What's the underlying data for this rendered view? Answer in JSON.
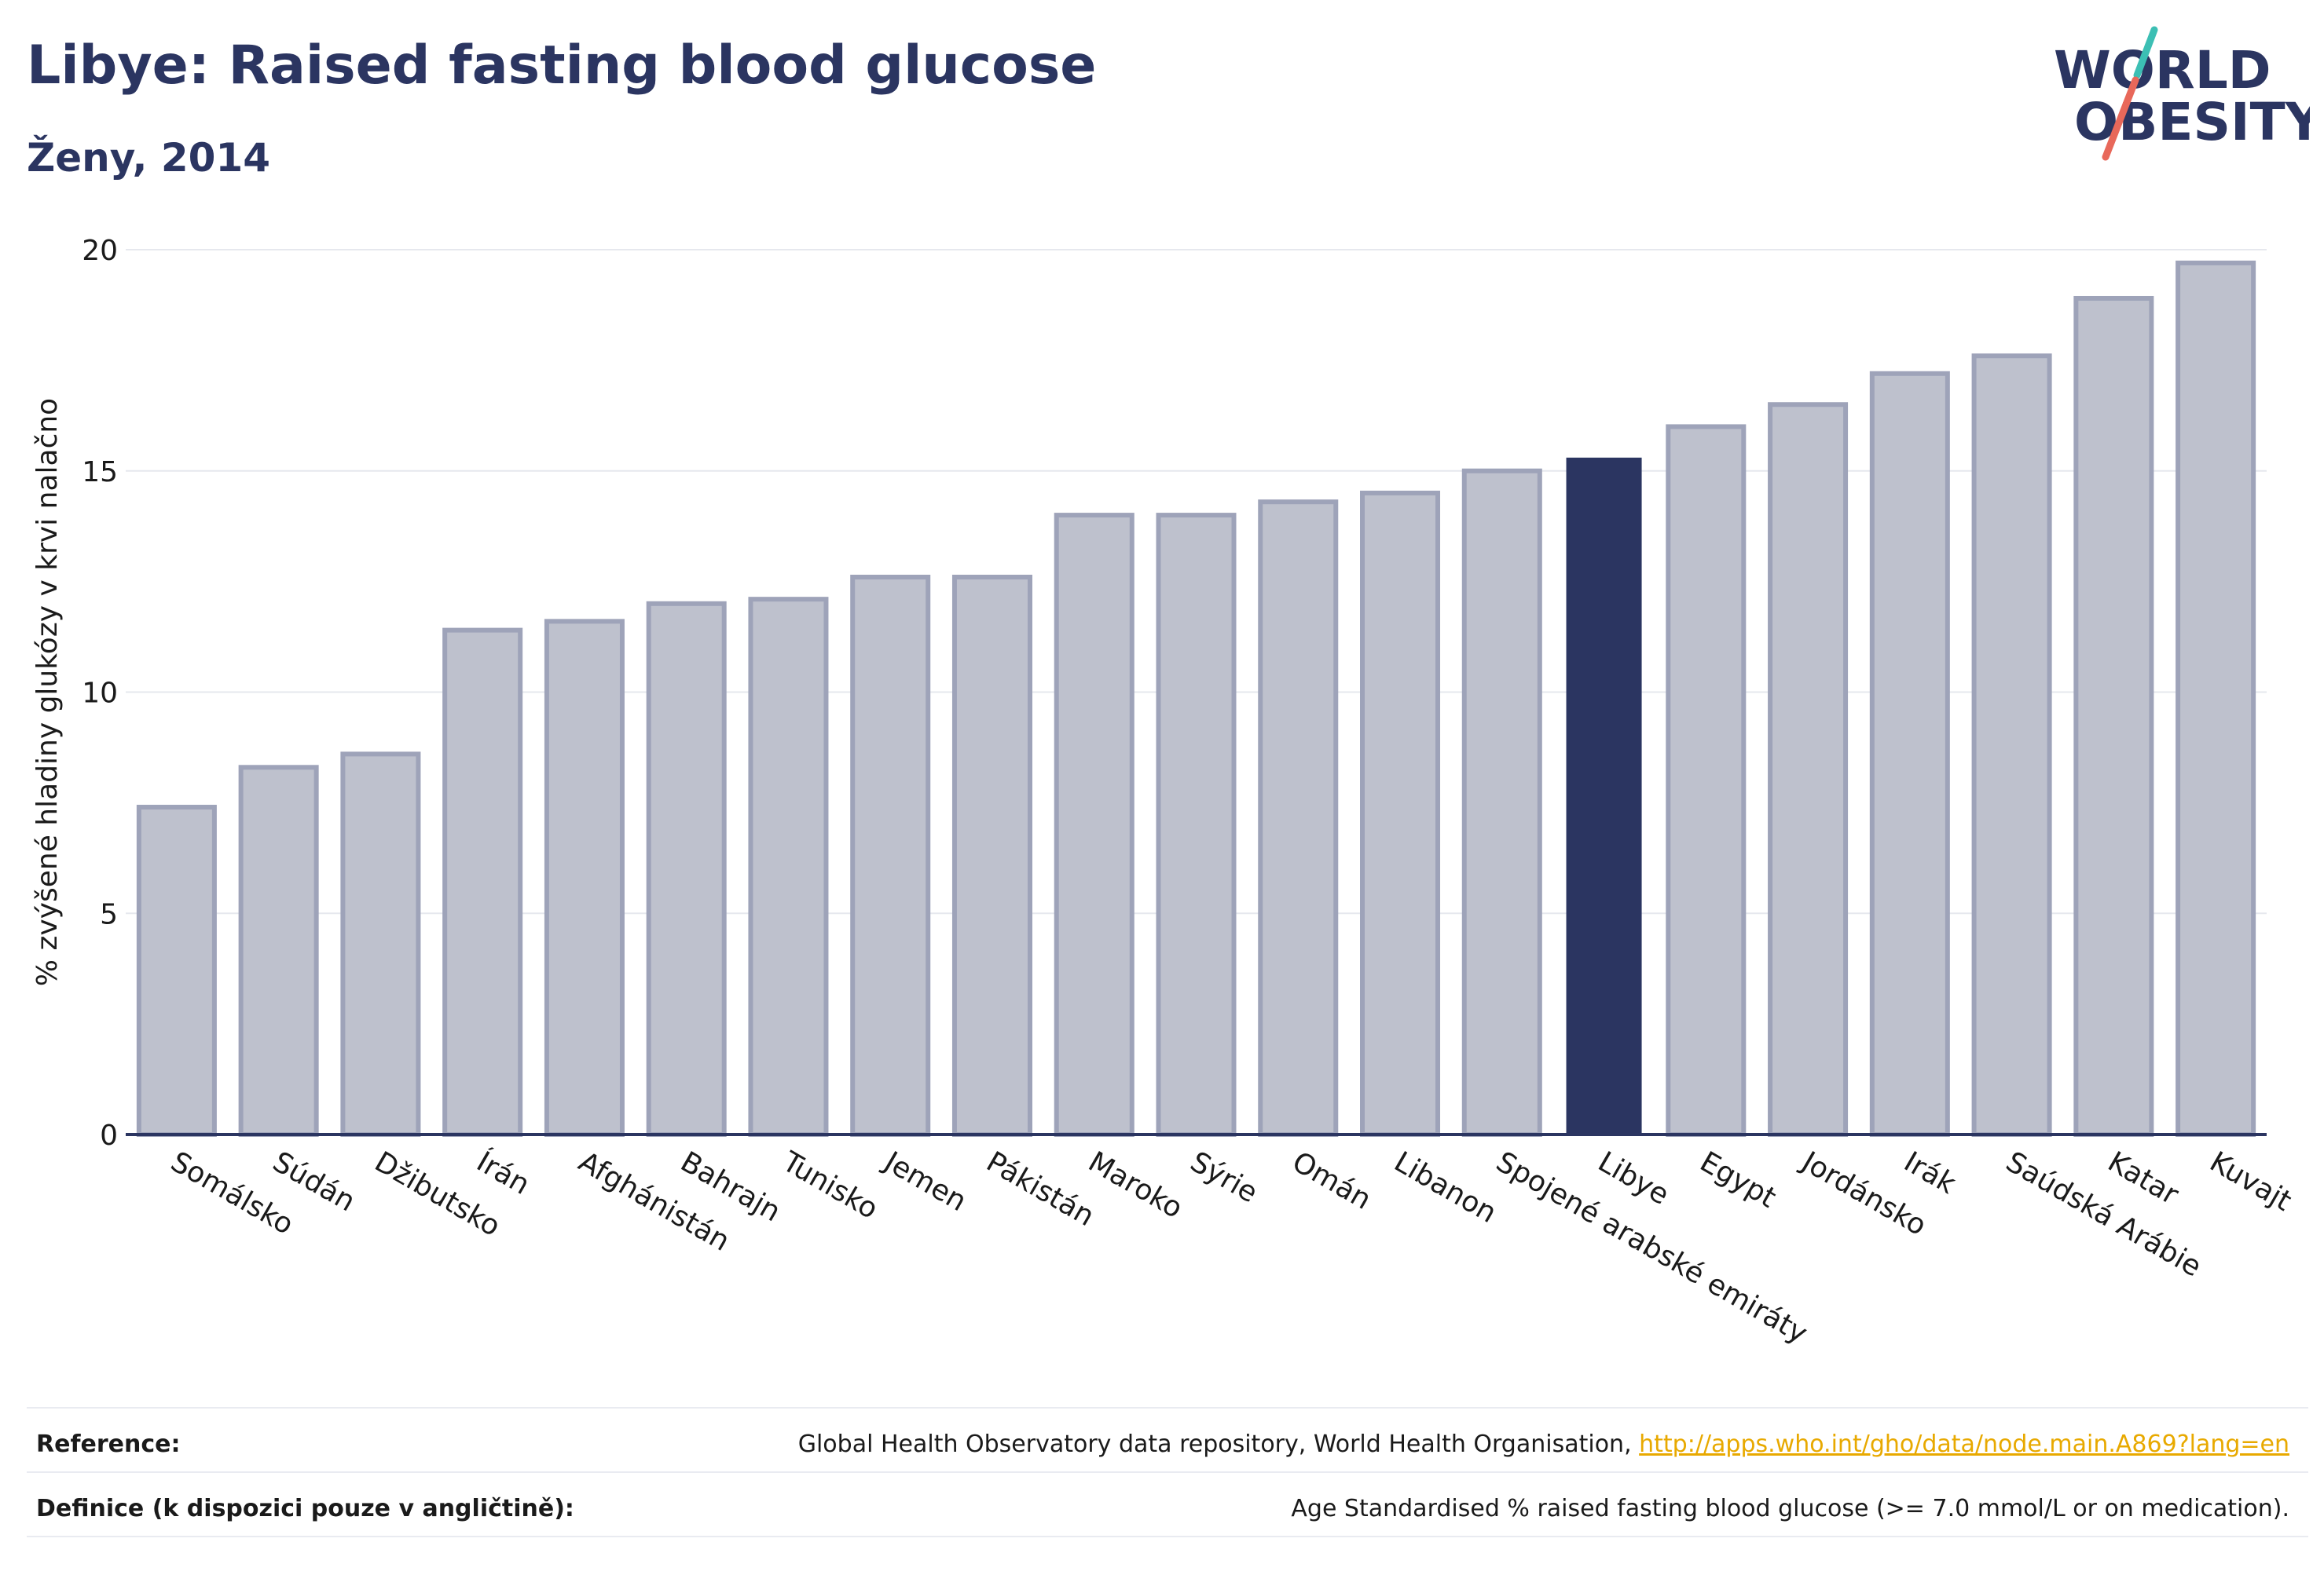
{
  "header": {
    "title": "Libye: Raised fasting blood glucose",
    "subtitle": "Ženy, 2014"
  },
  "logo": {
    "line1": "WORLD",
    "line2": "OBESITY",
    "text_color": "#2b3561",
    "slash_top_color": "#3cbfb4",
    "slash_bottom_color": "#e8685a"
  },
  "chart_data": {
    "type": "bar",
    "ylabel": "% zvýšené hladiny glukózy v krvi nalačno",
    "xlabel": "",
    "ylim": [
      0,
      20
    ],
    "yticks": [
      0,
      5,
      10,
      15,
      20
    ],
    "grid": true,
    "highlight_category": "Libye",
    "colors": {
      "bar": "#bec1cd",
      "bar_border": "#9ea3b9",
      "highlight": "#2b3561",
      "grid": "#e6e8ee",
      "axis": "#2b3561"
    },
    "categories": [
      "Somálsko",
      "Súdán",
      "Džibutsko",
      "Írán",
      "Afghánistán",
      "Bahrajn",
      "Tunisko",
      "Jemen",
      "Pákistán",
      "Maroko",
      "Sýrie",
      "Omán",
      "Libanon",
      "Spojené arabské emiráty",
      "Libye",
      "Egypt",
      "Jordánsko",
      "Irák",
      "Saúdská Arábie",
      "Katar",
      "Kuvajt"
    ],
    "values": [
      7.4,
      8.3,
      8.6,
      11.4,
      11.6,
      12.0,
      12.1,
      12.6,
      12.6,
      14.0,
      14.0,
      14.3,
      14.5,
      15.0,
      15.3,
      16.0,
      16.5,
      17.2,
      17.6,
      18.9,
      19.7
    ]
  },
  "footer": {
    "reference_label": "Reference:",
    "reference_text": "Global Health Observatory data repository, World Health Organisation, ",
    "reference_link": "http://apps.who.int/gho/data/node.main.A869?lang=en",
    "definition_label": "Definice (k dispozici pouze v angličtině):",
    "definition_text": "Age Standardised % raised fasting blood glucose (>= 7.0 mmol/L or on medication)."
  }
}
